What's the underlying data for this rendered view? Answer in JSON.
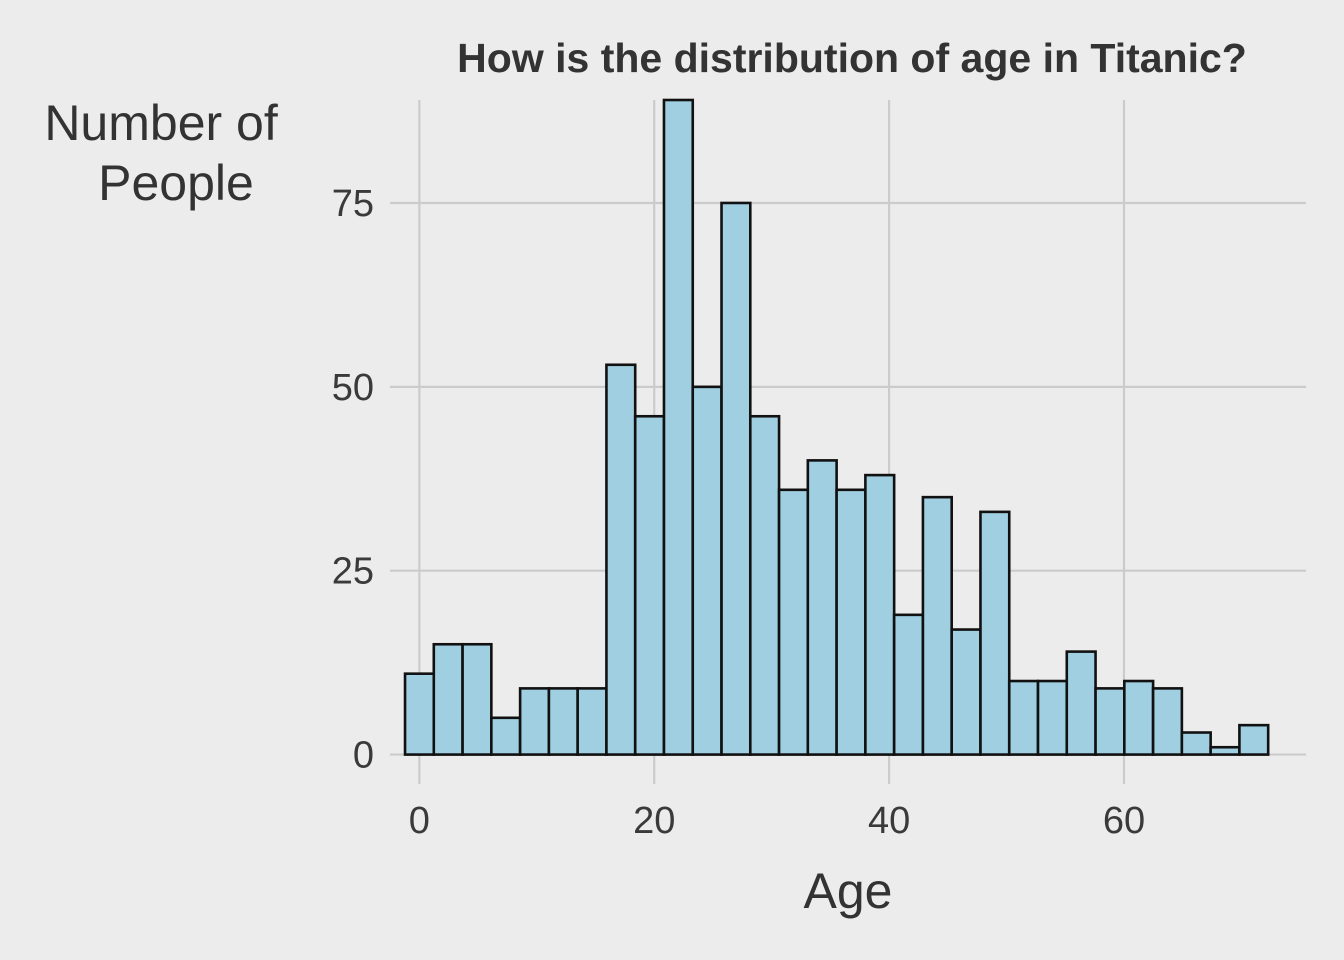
{
  "chart_data": {
    "type": "bar",
    "subtype": "histogram",
    "title": "How is the distribution of age in Titanic?",
    "xlabel": "Age",
    "ylabel_lines": [
      "Number of",
      "People"
    ],
    "xlim": [
      -2.5,
      75.5
    ],
    "ylim": [
      -4,
      89
    ],
    "x_ticks": [
      0,
      20,
      40,
      60
    ],
    "y_ticks": [
      0,
      25,
      50,
      75
    ],
    "grid": true,
    "bin_width": 2.45,
    "bin_start": -1.22,
    "counts": [
      11,
      15,
      15,
      5,
      9,
      9,
      9,
      53,
      46,
      89,
      50,
      75,
      46,
      36,
      40,
      36,
      38,
      19,
      35,
      17,
      33,
      10,
      10,
      14,
      9,
      10,
      9,
      3,
      1,
      4
    ],
    "bar_fill": "#9fcfe1",
    "bar_edge": "#111111",
    "background": "#ececec",
    "grid_color": "#cbcbcb"
  }
}
